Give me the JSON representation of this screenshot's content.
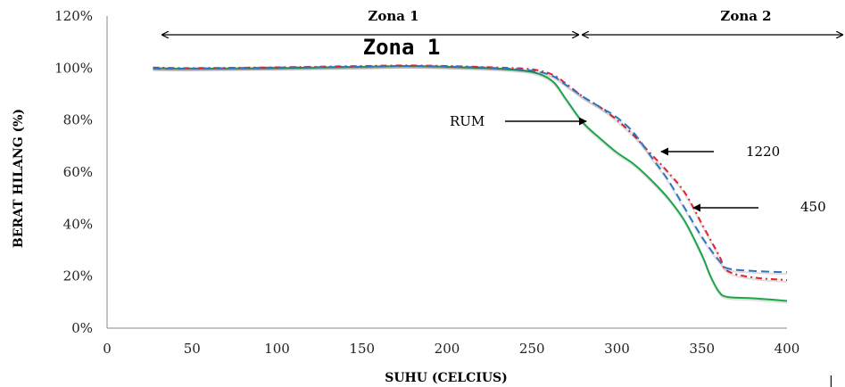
{
  "chart_data": {
    "type": "line",
    "xlabel": "SUHU (CELCIUS)",
    "ylabel": "BERAT HILANG (%)",
    "xlim": [
      0,
      400
    ],
    "ylim": [
      0,
      120
    ],
    "x_ticks": [
      "0",
      "50",
      "100",
      "150",
      "200",
      "250",
      "300",
      "350",
      "400"
    ],
    "y_ticks": [
      "0%",
      "20%",
      "40%",
      "60%",
      "80%",
      "100%",
      "120%"
    ],
    "grid": false,
    "series": [
      {
        "name": "RUM",
        "color": "#1aa64a",
        "style": "solid",
        "x": [
          27,
          50,
          100,
          150,
          175,
          200,
          230,
          250,
          262,
          270,
          280,
          290,
          300,
          310,
          320,
          330,
          340,
          350,
          355,
          360,
          365,
          380,
          400
        ],
        "y": [
          100,
          99.8,
          100,
          100.5,
          100.8,
          100.5,
          99.8,
          98.5,
          95,
          88,
          79,
          73,
          67.5,
          63,
          57,
          50,
          41,
          28,
          20,
          14,
          12,
          11.5,
          10.5
        ]
      },
      {
        "name": "1220",
        "color": "#e8202a",
        "style": "dashdot",
        "x": [
          27,
          50,
          100,
          150,
          175,
          200,
          230,
          250,
          262,
          270,
          280,
          290,
          300,
          310,
          320,
          330,
          340,
          350,
          360,
          365,
          380,
          400
        ],
        "y": [
          100.2,
          100,
          100.3,
          100.8,
          101,
          100.8,
          100.2,
          99.5,
          97.5,
          94,
          89,
          85,
          80,
          74,
          67,
          60,
          52,
          40,
          28,
          22,
          19.5,
          18.5
        ]
      },
      {
        "name": "450",
        "color": "#2e75c6",
        "style": "dashed",
        "x": [
          27,
          50,
          100,
          150,
          175,
          200,
          230,
          250,
          262,
          270,
          280,
          290,
          300,
          310,
          320,
          330,
          340,
          350,
          360,
          365,
          380,
          400
        ],
        "y": [
          99.8,
          99.8,
          100.2,
          100.5,
          100.8,
          100.6,
          100,
          99,
          97,
          93.5,
          89,
          85,
          81,
          75,
          66,
          57,
          46,
          35,
          26,
          23,
          22,
          21.5
        ]
      }
    ],
    "annotations": [
      {
        "text": "RUM",
        "series": "RUM"
      },
      {
        "text": "1220",
        "series": "1220"
      },
      {
        "text": "450",
        "series": "450"
      }
    ],
    "zones": [
      {
        "label": "Zona 1",
        "from": 32,
        "to": 280
      },
      {
        "label": "Zona 2",
        "from": 280,
        "to": 402
      }
    ],
    "zone_big_label": "Zona 1"
  },
  "edge_mark": "|"
}
